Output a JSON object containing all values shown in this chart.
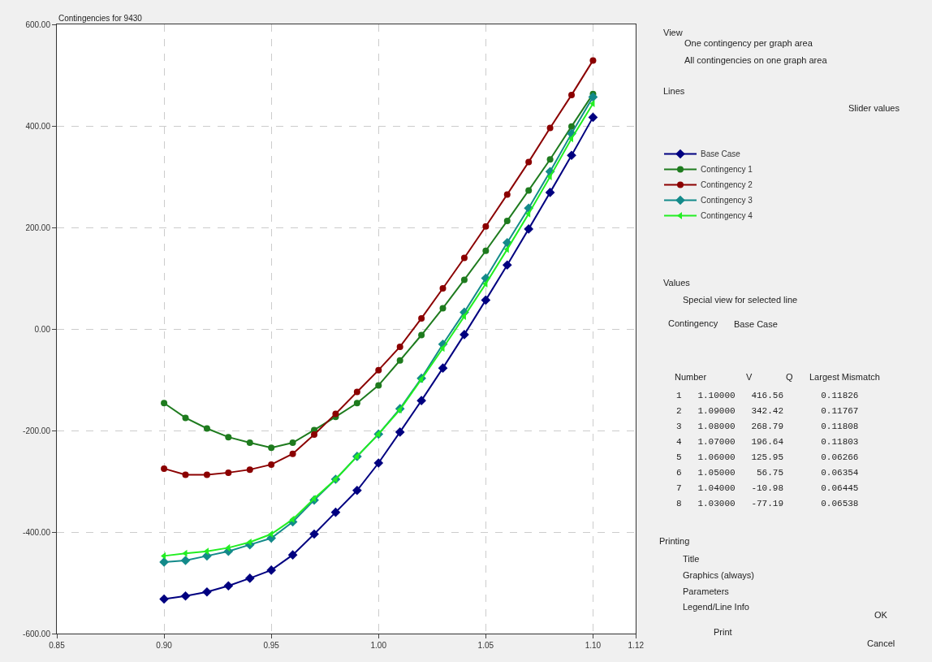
{
  "chart_data": [
    {
      "type": "line",
      "title": "Contingencies for 9430",
      "x": [
        0.9,
        0.91,
        0.92,
        0.93,
        0.94,
        0.95,
        0.96,
        0.97,
        0.98,
        0.99,
        1.0,
        1.01,
        1.02,
        1.03,
        1.04,
        1.05,
        1.06,
        1.07,
        1.08,
        1.09,
        1.1
      ],
      "series": [
        {
          "name": "Base Case",
          "color": "#000080",
          "marker": "diamond",
          "values": [
            -532,
            -526,
            -518,
            -506,
            -491,
            -475,
            -445,
            -404,
            -361,
            -318,
            -264,
            -203,
            -141,
            -77,
            -11,
            57,
            126,
            197,
            269,
            342,
            417
          ]
        },
        {
          "name": "Contingency 1",
          "color": "#1e7b1e",
          "marker": "circle",
          "values": [
            -146,
            -175,
            -196,
            -213,
            -224,
            -234,
            -224,
            -199,
            -173,
            -146,
            -111,
            -62,
            -12,
            41,
            97,
            154,
            213,
            273,
            334,
            399,
            463
          ]
        },
        {
          "name": "Contingency 2",
          "color": "#8b0000",
          "marker": "circle",
          "values": [
            -275,
            -287,
            -287,
            -283,
            -277,
            -267,
            -246,
            -208,
            -167,
            -124,
            -81,
            -35,
            21,
            80,
            140,
            202,
            265,
            329,
            396,
            461,
            529
          ]
        },
        {
          "name": "Contingency 3",
          "color": "#138a8a",
          "marker": "diamond",
          "values": [
            -459,
            -456,
            -447,
            -438,
            -425,
            -412,
            -380,
            -337,
            -296,
            -251,
            -207,
            -157,
            -97,
            -30,
            33,
            100,
            170,
            238,
            310,
            385,
            457
          ]
        },
        {
          "name": "Contingency 4",
          "color": "#22ee22",
          "marker": "triangle",
          "values": [
            -447,
            -442,
            -438,
            -431,
            -420,
            -404,
            -375,
            -334,
            -296,
            -251,
            -207,
            -159,
            -99,
            -38,
            25,
            89,
            157,
            227,
            300,
            375,
            444
          ]
        }
      ],
      "xlim": [
        0.85,
        1.12
      ],
      "xticks": [
        {
          "value": 0.85,
          "label": "0.85"
        },
        {
          "value": 0.9,
          "label": "0.90"
        },
        {
          "value": 0.95,
          "label": "0.95"
        },
        {
          "value": 1.0,
          "label": "1.00"
        },
        {
          "value": 1.05,
          "label": "1.05"
        },
        {
          "value": 1.1,
          "label": "1.10"
        },
        {
          "value": 1.12,
          "label": "1.12"
        }
      ],
      "ylim": [
        -600,
        600
      ],
      "yticks": [
        {
          "value": -600,
          "label": "-600.00"
        },
        {
          "value": -400,
          "label": "-400.00"
        },
        {
          "value": -200,
          "label": "-200.00"
        },
        {
          "value": 0,
          "label": "0.00"
        },
        {
          "value": 200,
          "label": "200.00"
        },
        {
          "value": 400,
          "label": "400.00"
        },
        {
          "value": 600,
          "label": "600.00"
        }
      ],
      "grid": true,
      "legend": "right",
      "line_style": "solid"
    },
    {
      "type": "other",
      "annotations": [
        "View",
        "One contingency per graph area",
        "All contingencies on one graph area",
        "Lines",
        "Slider values",
        "Values",
        "Special view for selected line",
        "Contingency",
        "Base Case",
        "Number",
        "V",
        "Q",
        "Largest Mismatch",
        "1",
        "1.10000",
        "416.56",
        "0.11826",
        "2",
        "1.09000",
        "342.42",
        "0.11767",
        "3",
        "1.08000",
        "268.79",
        "0.11808",
        "4",
        "1.07000",
        "196.64",
        "0.11803",
        "5",
        "1.06000",
        "125.95",
        "0.06266",
        "6",
        "1.05000",
        "56.75",
        "0.06354",
        "7",
        "1.04000",
        "-10.98",
        "0.06445",
        "8",
        "1.03000",
        "-77.19",
        "0.06538",
        "Printing",
        "Title",
        "Graphics (always)",
        "Parameters",
        "Legend/Line Info",
        "Print",
        "OK",
        "Cancel"
      ]
    }
  ]
}
